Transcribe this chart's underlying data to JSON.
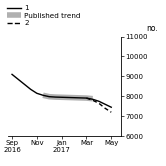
{
  "title": "no.",
  "ylim": [
    6000,
    11000
  ],
  "yticks": [
    6000,
    7000,
    8000,
    9000,
    10000,
    11000
  ],
  "x_labels": [
    "Sep\n2016",
    "Nov",
    "Jan\n2017",
    "Mar",
    "May"
  ],
  "x_positions": [
    0,
    2,
    4,
    6,
    8
  ],
  "line1_x": [
    0,
    0.5,
    1,
    1.5,
    2,
    2.5,
    3,
    3.5,
    4,
    4.5,
    5,
    5.5,
    6,
    6.5,
    7,
    7.5,
    8
  ],
  "line1_y": [
    9100,
    8850,
    8600,
    8350,
    8150,
    8050,
    7980,
    7960,
    7950,
    7940,
    7930,
    7920,
    7910,
    7850,
    7750,
    7600,
    7450
  ],
  "published_x": [
    2.5,
    3,
    3.5,
    4,
    4.5,
    5,
    5.5,
    6,
    6.5
  ],
  "published_y": [
    8050,
    7980,
    7960,
    7950,
    7940,
    7930,
    7920,
    7910,
    7880
  ],
  "line2_x": [
    6,
    6.5,
    7,
    7.5,
    8
  ],
  "line2_y": [
    7910,
    7800,
    7650,
    7400,
    7200
  ],
  "color_line1": "#000000",
  "color_published": "#b0b0b0",
  "color_line2": "#000000",
  "legend_labels": [
    "1",
    "Published trend",
    "2"
  ],
  "bg_color": "#ffffff"
}
